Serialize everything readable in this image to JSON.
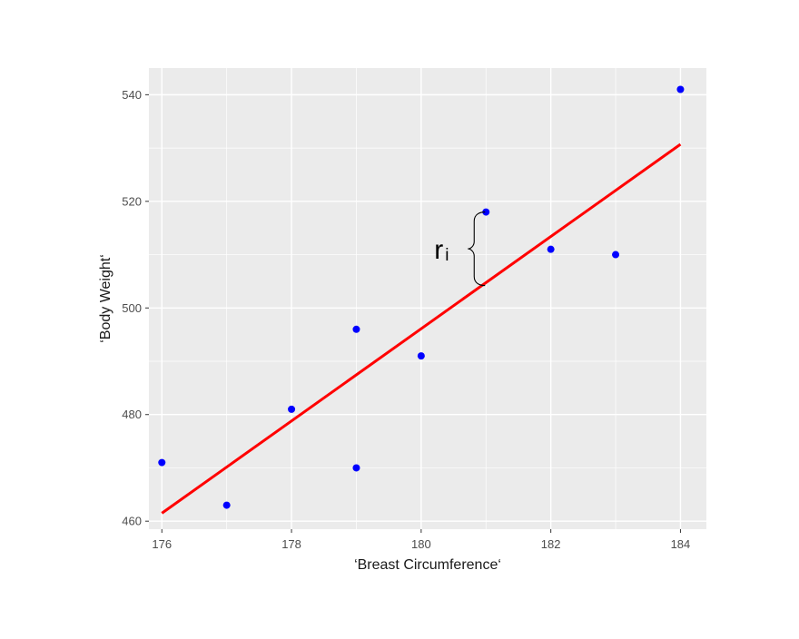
{
  "chart_data": {
    "type": "scatter",
    "title": "",
    "xlabel": "‘Breast Circumference‘",
    "ylabel": "‘Body Weight‘",
    "xlim": [
      175.8,
      184.4
    ],
    "ylim": [
      458.5,
      545.0
    ],
    "xticks": [
      176,
      178,
      180,
      182,
      184
    ],
    "yticks": [
      460,
      480,
      500,
      520,
      540
    ],
    "grid": true,
    "points": [
      {
        "x": 176,
        "y": 471
      },
      {
        "x": 177,
        "y": 463
      },
      {
        "x": 178,
        "y": 481
      },
      {
        "x": 179,
        "y": 496
      },
      {
        "x": 179,
        "y": 470
      },
      {
        "x": 180,
        "y": 491
      },
      {
        "x": 181,
        "y": 518
      },
      {
        "x": 182,
        "y": 511
      },
      {
        "x": 183,
        "y": 510
      },
      {
        "x": 184,
        "y": 541
      }
    ],
    "fit_line": {
      "x": [
        176,
        184
      ],
      "y": [
        461.5,
        530.7
      ]
    },
    "residual_annotation": {
      "label_main": "r",
      "label_sub": "i",
      "x": 181,
      "y_top": 518,
      "y_bottom": 504.2
    },
    "colors": {
      "panel": "#ebebeb",
      "grid": "#ffffff",
      "points": "#0000ff",
      "fit_line": "#ff0000",
      "brace": "#000000"
    }
  }
}
